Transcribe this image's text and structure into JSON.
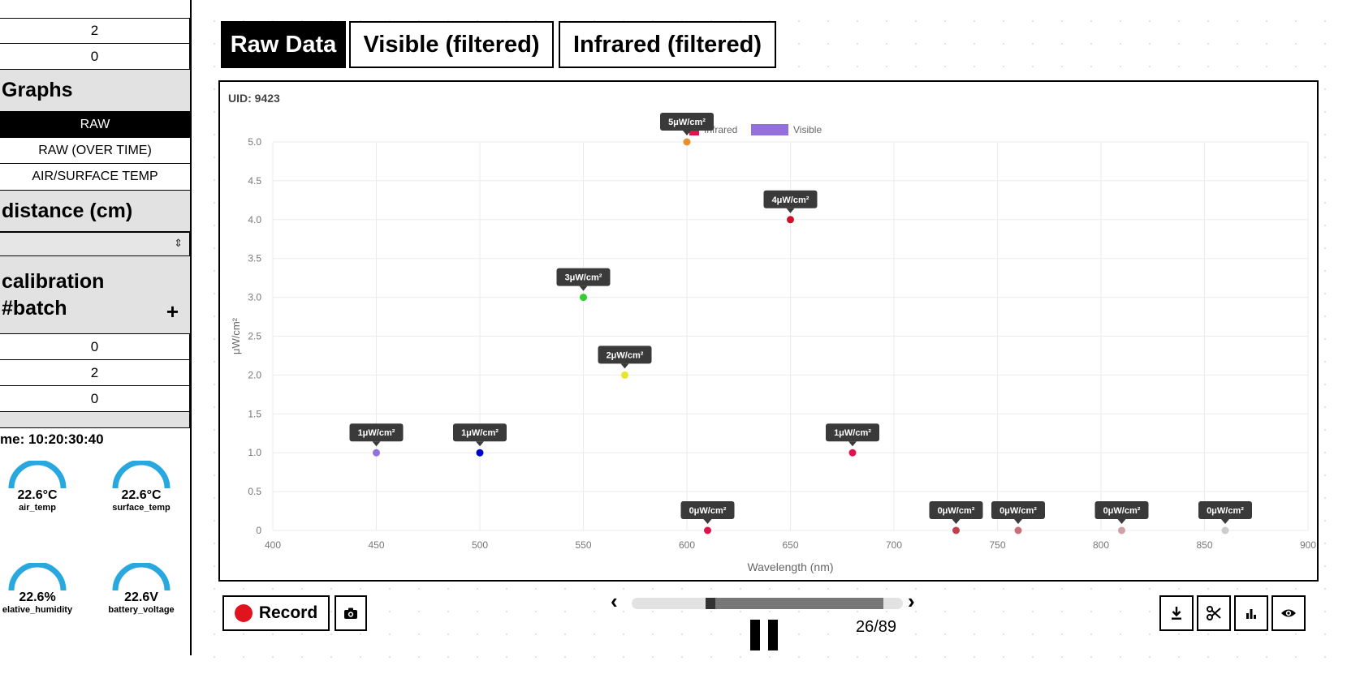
{
  "sidebar": {
    "top_values": [
      "2",
      "0"
    ],
    "graphs_header": "Graphs",
    "graph_items": [
      {
        "label": "RAW",
        "active": true
      },
      {
        "label": "RAW (OVER TIME)",
        "active": false
      },
      {
        "label": "AIR/SURFACE TEMP",
        "active": false
      }
    ],
    "distance_header": "distance (cm)",
    "distance_value": "",
    "calibration_header_line1": "calibration",
    "calibration_header_line2": "#batch",
    "calibration_add": "+",
    "calibration_values": [
      "0",
      "2",
      "0"
    ],
    "time_label": "me: 10:20:30:40",
    "gauges": [
      {
        "value": "22.6°C",
        "name": "air_temp",
        "level": 0.6
      },
      {
        "value": "22.6°C",
        "name": "surface_temp",
        "level": 0.6
      },
      {
        "value": "22.6%",
        "name": "elative_humidity",
        "level": 0.6
      },
      {
        "value": "22.6V",
        "name": "battery_voltage",
        "level": 0.6
      }
    ]
  },
  "tabs": [
    {
      "label": "Raw Data",
      "active": true
    },
    {
      "label": "Visible (filtered)",
      "active": false
    },
    {
      "label": "Infrared (filtered)",
      "active": false
    }
  ],
  "chart": {
    "uid_label": "UID: 9423"
  },
  "chart_data": {
    "type": "scatter",
    "xlabel": "Wavelength (nm)",
    "ylabel": "μW/cm²",
    "xlim": [
      400,
      900
    ],
    "ylim": [
      0,
      5.0
    ],
    "xticks": [
      "400",
      "450",
      "500",
      "550",
      "600",
      "650",
      "700",
      "750",
      "800",
      "850",
      "900"
    ],
    "yticks": [
      "0",
      "0.5",
      "1.0",
      "1.5",
      "2.0",
      "2.5",
      "3.0",
      "3.5",
      "4.0",
      "4.5",
      "5.0"
    ],
    "legend": [
      {
        "name": "Infrared",
        "color": "#e0144c"
      },
      {
        "name": "Visible",
        "color": "#9370db"
      }
    ],
    "points": [
      {
        "x": 450,
        "y": 1,
        "label": "1μW/cm²",
        "color": "#9370db"
      },
      {
        "x": 500,
        "y": 1,
        "label": "1μW/cm²",
        "color": "#0000cc"
      },
      {
        "x": 550,
        "y": 3,
        "label": "3μW/cm²",
        "color": "#33cc33"
      },
      {
        "x": 570,
        "y": 2,
        "label": "2μW/cm²",
        "color": "#e6e62e"
      },
      {
        "x": 600,
        "y": 5,
        "label": "5μW/cm²",
        "color": "#e8902e"
      },
      {
        "x": 610,
        "y": 0,
        "label": "0μW/cm²",
        "color": "#e0144c"
      },
      {
        "x": 650,
        "y": 4,
        "label": "4μW/cm²",
        "color": "#d0102a"
      },
      {
        "x": 680,
        "y": 1,
        "label": "1μW/cm²",
        "color": "#e0144c"
      },
      {
        "x": 730,
        "y": 0,
        "label": "0μW/cm²",
        "color": "#c0404c"
      },
      {
        "x": 760,
        "y": 0,
        "label": "0μW/cm²",
        "color": "#c87078"
      },
      {
        "x": 810,
        "y": 0,
        "label": "0μW/cm²",
        "color": "#d0a0a6"
      },
      {
        "x": 860,
        "y": 0,
        "label": "0μW/cm²",
        "color": "#cccccc"
      }
    ]
  },
  "controls": {
    "record_label": "Record",
    "frame_counter": "26/89",
    "progress": 0.29,
    "prev_icon": "‹",
    "next_icon": "›"
  }
}
